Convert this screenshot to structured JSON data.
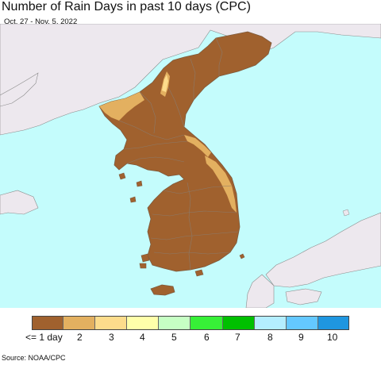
{
  "header": {
    "title": "Number of Rain Days in past 10 days (CPC)",
    "subtitle": "Oct. 27 - Nov. 5, 2022"
  },
  "legend": {
    "items": [
      {
        "label": "<= 1 day",
        "color": "#a0612e"
      },
      {
        "label": "2",
        "color": "#e3b060"
      },
      {
        "label": "3",
        "color": "#fddc8c"
      },
      {
        "label": "4",
        "color": "#ffffaa"
      },
      {
        "label": "5",
        "color": "#c6ffc4"
      },
      {
        "label": "6",
        "color": "#37f037"
      },
      {
        "label": "7",
        "color": "#00c000"
      },
      {
        "label": "8",
        "color": "#b4eeff"
      },
      {
        "label": "9",
        "color": "#64c8ff"
      },
      {
        "label": "10",
        "color": "#1f96e0"
      }
    ]
  },
  "footer": {
    "source": "Source: NOAA/CPC"
  },
  "colors": {
    "ocean": "#c4fcfc",
    "outside_land": "#ede8ee",
    "rain_le1": "#a0612e",
    "rain_2": "#e3b060",
    "rain_3": "#fddc8c",
    "boundary": "#8c7a6a"
  }
}
